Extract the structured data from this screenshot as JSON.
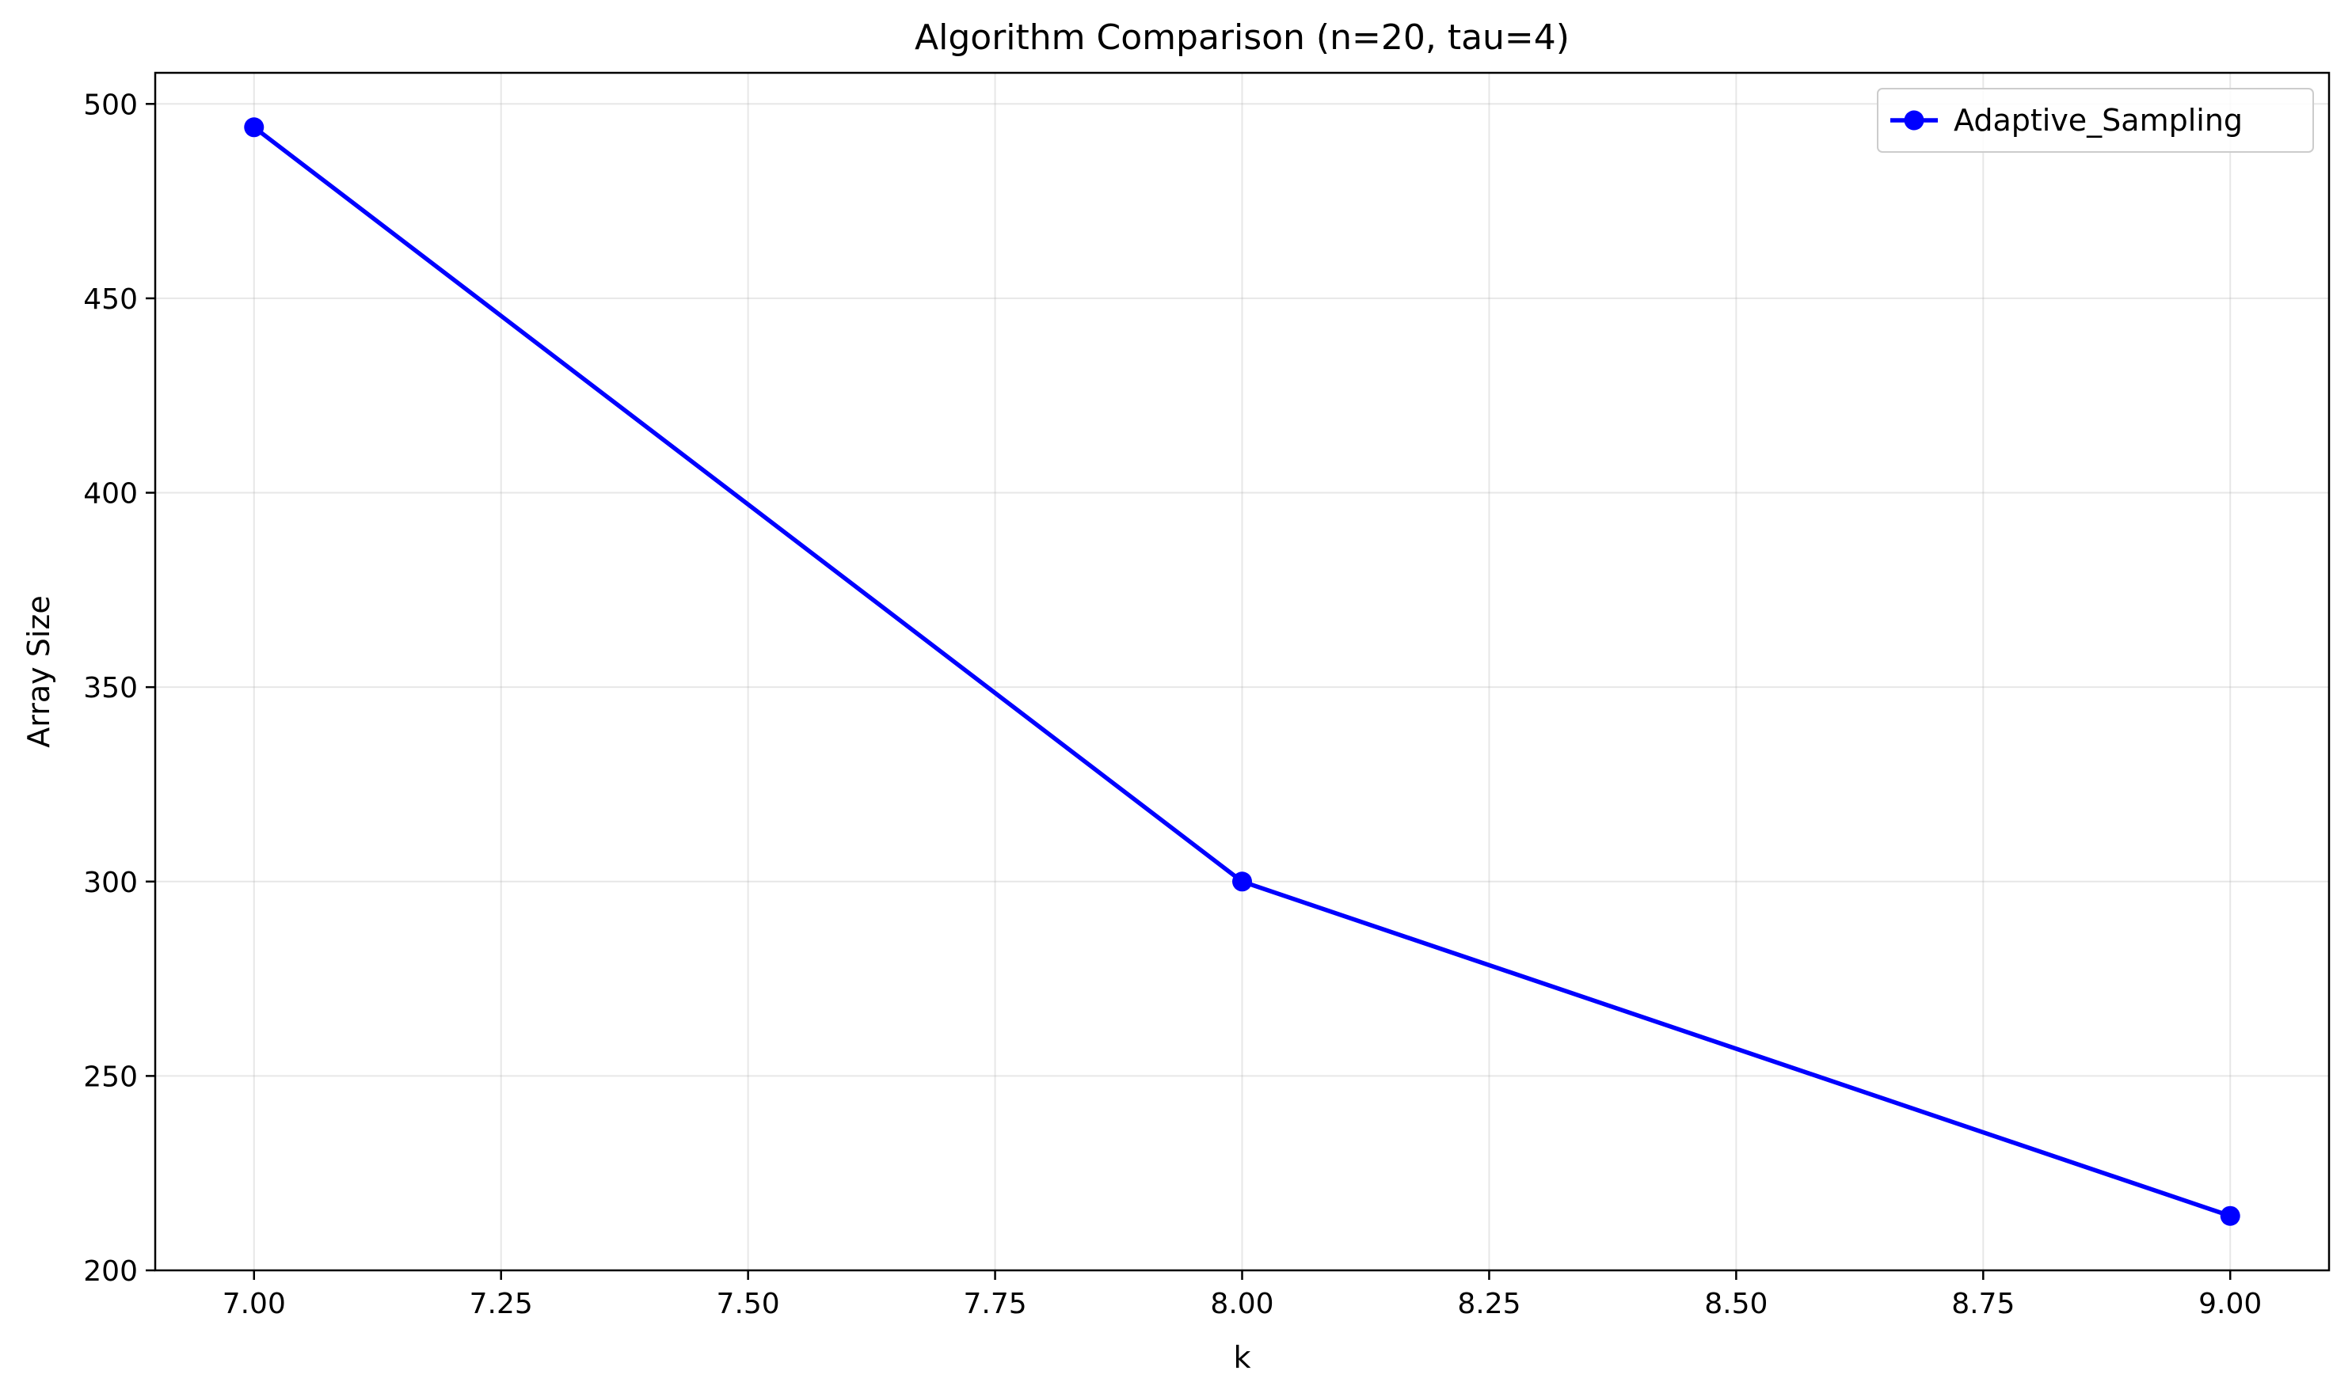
{
  "chart_data": {
    "type": "line",
    "title": "Algorithm Comparison (n=20, tau=4)",
    "xlabel": "k",
    "ylabel": "Array Size",
    "xlim": [
      6.9,
      9.1
    ],
    "ylim": [
      200,
      508
    ],
    "x_ticks": [
      7.0,
      7.25,
      7.5,
      7.75,
      8.0,
      8.25,
      8.5,
      8.75,
      9.0
    ],
    "x_tick_labels": [
      "7.00",
      "7.25",
      "7.50",
      "7.75",
      "8.00",
      "8.25",
      "8.50",
      "8.75",
      "9.00"
    ],
    "y_ticks": [
      200,
      250,
      300,
      350,
      400,
      450,
      500
    ],
    "y_tick_labels": [
      "200",
      "250",
      "300",
      "350",
      "400",
      "450",
      "500"
    ],
    "grid": true,
    "legend_position": "top-right",
    "series": [
      {
        "name": "Adaptive_Sampling",
        "color": "#0000ff",
        "marker": "circle",
        "x": [
          7,
          8,
          9
        ],
        "y": [
          494,
          300,
          214
        ]
      }
    ]
  }
}
